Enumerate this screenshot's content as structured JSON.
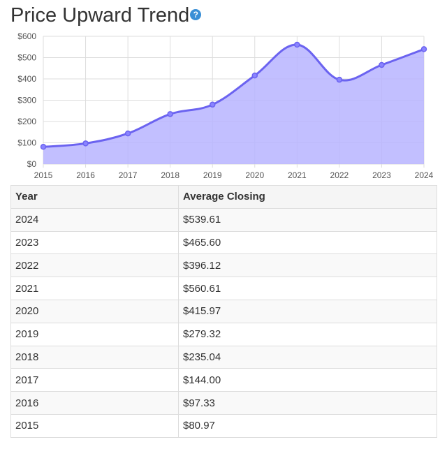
{
  "title": "Price Upward Trend",
  "help_icon": "question-circle-icon",
  "colors": {
    "line": "#6b63f0",
    "fill": "#b7b4ff",
    "grid": "#dddddd"
  },
  "chart_data": {
    "type": "area",
    "x": [
      "2015",
      "2016",
      "2017",
      "2018",
      "2019",
      "2020",
      "2021",
      "2022",
      "2023",
      "2024"
    ],
    "values": [
      80.97,
      97.33,
      144.0,
      235.04,
      279.32,
      415.97,
      560.61,
      396.12,
      465.6,
      539.61
    ],
    "ylim": [
      0,
      600
    ],
    "yticks": [
      "$0",
      "$100",
      "$200",
      "$300",
      "$400",
      "$500",
      "$600"
    ],
    "grid": true
  },
  "table": {
    "headers": [
      "Year",
      "Average Closing"
    ],
    "rows": [
      [
        "2024",
        "$539.61"
      ],
      [
        "2023",
        "$465.60"
      ],
      [
        "2022",
        "$396.12"
      ],
      [
        "2021",
        "$560.61"
      ],
      [
        "2020",
        "$415.97"
      ],
      [
        "2019",
        "$279.32"
      ],
      [
        "2018",
        "$235.04"
      ],
      [
        "2017",
        "$144.00"
      ],
      [
        "2016",
        "$97.33"
      ],
      [
        "2015",
        "$80.97"
      ]
    ]
  }
}
